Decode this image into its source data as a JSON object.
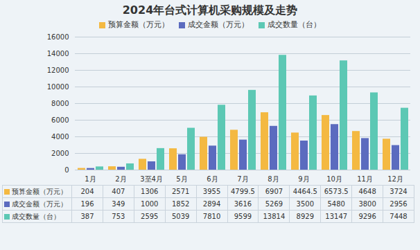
{
  "chart_data": {
    "type": "bar",
    "title": "2024年台式计算机采购规模及走势",
    "categories": [
      "1月",
      "2月",
      "3至4月",
      "5月",
      "6月",
      "7月",
      "8月",
      "9月",
      "10月",
      "11月",
      "12月"
    ],
    "series": [
      {
        "name": "预算金额（万元）",
        "color": "#f4b942",
        "values": [
          204,
          407,
          1306,
          2571,
          3955,
          4799.5,
          6907,
          4464.5,
          6573.5,
          4648,
          3724
        ]
      },
      {
        "name": "成交金额（万元）",
        "color": "#5b6bbf",
        "values": [
          196,
          349,
          1000,
          1852,
          2894,
          3616,
          5269,
          3500,
          5480,
          3800,
          2956
        ]
      },
      {
        "name": "成交数量（台）",
        "color": "#5cc8b4",
        "values": [
          387,
          753,
          2595,
          5039,
          7810,
          9599,
          13814,
          8929,
          13147,
          9296,
          7448
        ]
      }
    ],
    "ylim": [
      0,
      16000
    ],
    "yticks": [
      0,
      2000,
      4000,
      6000,
      8000,
      10000,
      12000,
      14000,
      16000
    ],
    "grid": true,
    "legend": "top"
  }
}
